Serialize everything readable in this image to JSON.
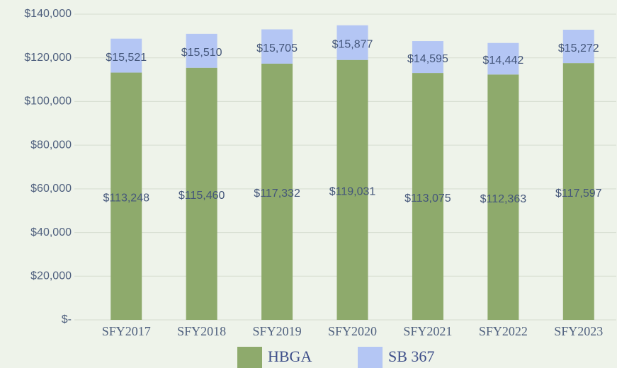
{
  "chart_data": {
    "type": "stacked_bar",
    "categories": [
      "SFY2017",
      "SFY2018",
      "SFY2019",
      "SFY2020",
      "SFY2021",
      "SFY2022",
      "SFY2023"
    ],
    "series": [
      {
        "name": "HBGA",
        "color": "#8eaa6c",
        "values": [
          113248,
          115460,
          117332,
          119031,
          113075,
          112363,
          117597
        ],
        "value_labels": [
          "$113,248",
          "$115,460",
          "$117,332",
          "$119,031",
          "$113,075",
          "$112,363",
          "$117,597"
        ]
      },
      {
        "name": "SB 367",
        "color": "#b4c6f4",
        "values": [
          15521,
          15510,
          15705,
          15877,
          14595,
          14442,
          15272
        ],
        "value_labels": [
          "$15,521",
          "$15,510",
          "$15,705",
          "$15,877",
          "$14,595",
          "$14,442",
          "$15,272"
        ]
      }
    ],
    "ylim": [
      0,
      140000
    ],
    "yticks": [
      {
        "value": 0,
        "label": "$-"
      },
      {
        "value": 20000,
        "label": "$20,000"
      },
      {
        "value": 40000,
        "label": "$40,000"
      },
      {
        "value": 60000,
        "label": "$60,000"
      },
      {
        "value": 80000,
        "label": "$80,000"
      },
      {
        "value": 100000,
        "label": "$100,000"
      },
      {
        "value": 120000,
        "label": "$120,000"
      },
      {
        "value": 140000,
        "label": "$140,000"
      }
    ],
    "grid": true,
    "legend": "bottom"
  }
}
